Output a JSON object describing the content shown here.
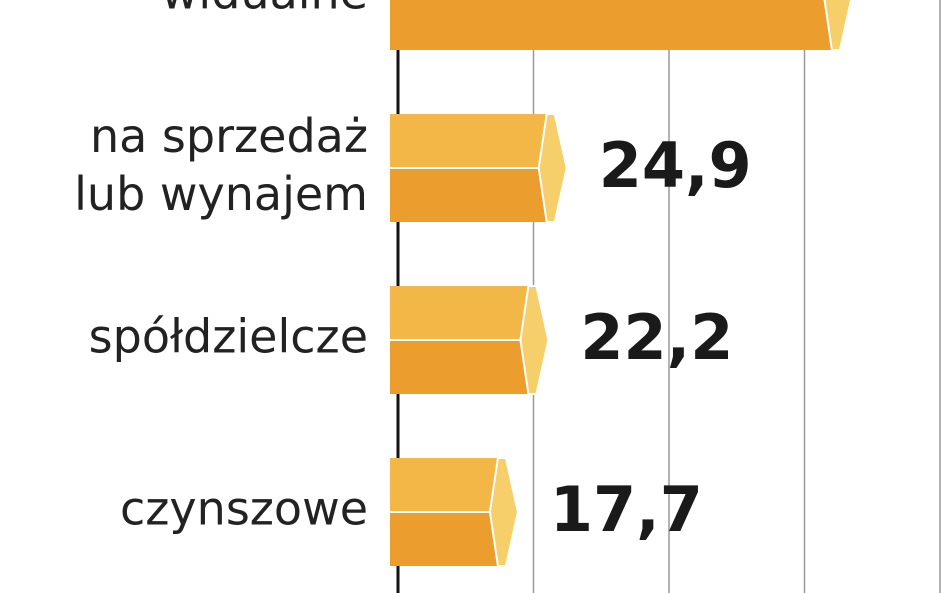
{
  "chart_data": {
    "type": "bar",
    "orientation": "horizontal",
    "categories": [
      "widualne",
      "na sprzedaż\nlub wynajem",
      "spółdzielcze",
      "czynszowe"
    ],
    "values": [
      67,
      24.9,
      22.2,
      17.7
    ],
    "value_labels": [
      null,
      "24,9",
      "22,2",
      "17,7"
    ],
    "color": "#eb9e2e",
    "top_color": "#f3b747",
    "tip_color": "#f6cf6b",
    "xlim": [
      0,
      80
    ],
    "xticks": [
      20,
      40,
      60,
      80
    ],
    "grid": true
  }
}
